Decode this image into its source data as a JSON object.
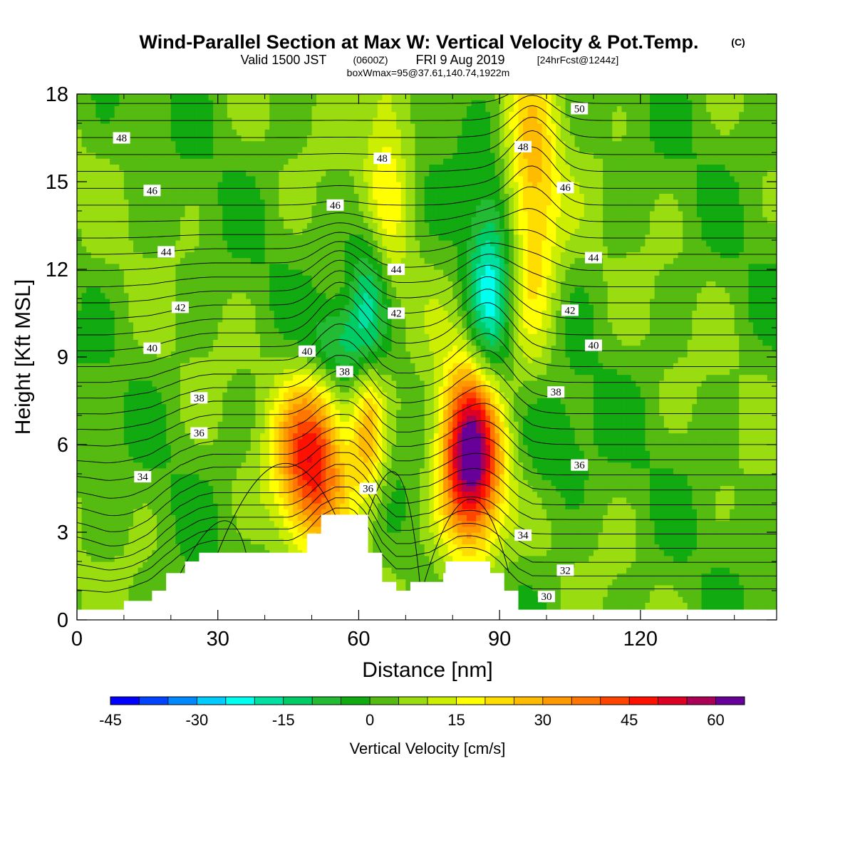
{
  "header": {
    "title": "Wind-Parallel Section at Max W: Vertical Velocity & Pot.Temp.",
    "copyright_mark": "(C)",
    "valid_prefix": "Valid 1500 JST",
    "zulu": "(0600Z)",
    "valid_date": "FRI 9 Aug 2019",
    "forecast": "[24hrFcst@1244z]",
    "box_info": "boxWmax=95@37.61,140.74,1922m"
  },
  "colorbar": {
    "label": "Vertical Velocity [cm/s]",
    "tick_labels": [
      "-45",
      "-30",
      "-15",
      "0",
      "15",
      "30",
      "45",
      "60"
    ],
    "tick_values": [
      -45,
      -30,
      -15,
      0,
      15,
      30,
      45,
      60
    ],
    "levels": [
      -45,
      -40,
      -35,
      -30,
      -25,
      -20,
      -15,
      -10,
      -5,
      0,
      5,
      10,
      15,
      20,
      25,
      30,
      35,
      40,
      45,
      50,
      55,
      60,
      65
    ],
    "colors": [
      "#0000ff",
      "#0044ff",
      "#0088ff",
      "#00ccff",
      "#00ffee",
      "#00e0a0",
      "#00cc66",
      "#22bb33",
      "#11aa11",
      "#55bb11",
      "#99dd11",
      "#ccee00",
      "#ffff00",
      "#ffdd00",
      "#ffbb00",
      "#ff9900",
      "#ff7700",
      "#ff4400",
      "#ff1100",
      "#dd0022",
      "#aa0055",
      "#660099"
    ]
  },
  "chart_data": {
    "type": "heatmap",
    "title": "Wind-Parallel Section at Max W: Vertical Velocity & Pot.Temp.",
    "xlabel": "Distance [nm]",
    "ylabel": "Height [Kft MSL]",
    "xlim": [
      0,
      149
    ],
    "ylim": [
      0,
      18
    ],
    "x_ticks": [
      0,
      30,
      60,
      90,
      120
    ],
    "x_tick_labels": [
      "0",
      "30",
      "60",
      "90",
      "120"
    ],
    "y_ticks": [
      0,
      3,
      6,
      9,
      12,
      15,
      18
    ],
    "y_tick_labels": [
      "0",
      "3",
      "6",
      "9",
      "12",
      "15",
      "18"
    ],
    "fill_variable": "Vertical Velocity [cm/s]",
    "vertical_velocity_features": [
      {
        "kind": "updraft",
        "x": 50,
        "y": 5.5,
        "peak": 45
      },
      {
        "kind": "updraft",
        "x": 62,
        "y": 6.5,
        "peak": 25
      },
      {
        "kind": "updraft",
        "x": 84,
        "y": 5.5,
        "peak": 65
      },
      {
        "kind": "updraft",
        "x": 66,
        "y": 16.5,
        "peak": 15
      },
      {
        "kind": "updraft",
        "x": 97,
        "y": 14,
        "peak": 25
      },
      {
        "kind": "downdraft",
        "x": 62,
        "y": 11,
        "peak": -20
      },
      {
        "kind": "downdraft",
        "x": 88,
        "y": 11,
        "peak": -25
      },
      {
        "kind": "downdraft",
        "x": 55,
        "y": 9.5,
        "peak": -15
      },
      {
        "kind": "downdraft",
        "x": 100,
        "y": 6,
        "peak": -10
      }
    ],
    "terrain": [
      {
        "x": 0,
        "h": 0.35
      },
      {
        "x": 10,
        "h": 0.35
      },
      {
        "x": 10,
        "h": 0.65
      },
      {
        "x": 16,
        "h": 0.65
      },
      {
        "x": 16,
        "h": 1.0
      },
      {
        "x": 19,
        "h": 1.0
      },
      {
        "x": 19,
        "h": 1.6
      },
      {
        "x": 23,
        "h": 1.6
      },
      {
        "x": 23,
        "h": 2.0
      },
      {
        "x": 26,
        "h": 2.0
      },
      {
        "x": 26,
        "h": 2.3
      },
      {
        "x": 49,
        "h": 2.3
      },
      {
        "x": 49,
        "h": 2.95
      },
      {
        "x": 52,
        "h": 2.95
      },
      {
        "x": 52,
        "h": 3.6
      },
      {
        "x": 62,
        "h": 3.6
      },
      {
        "x": 62,
        "h": 2.3
      },
      {
        "x": 65,
        "h": 2.3
      },
      {
        "x": 65,
        "h": 1.3
      },
      {
        "x": 68,
        "h": 1.3
      },
      {
        "x": 68,
        "h": 1.0
      },
      {
        "x": 71,
        "h": 1.0
      },
      {
        "x": 71,
        "h": 1.3
      },
      {
        "x": 78,
        "h": 1.3
      },
      {
        "x": 78,
        "h": 1.6
      },
      {
        "x": 78.5,
        "h": 1.6
      },
      {
        "x": 78.5,
        "h": 2.0
      },
      {
        "x": 88,
        "h": 2.0
      },
      {
        "x": 88,
        "h": 1.6
      },
      {
        "x": 91,
        "h": 1.6
      },
      {
        "x": 91,
        "h": 1.0
      },
      {
        "x": 94,
        "h": 1.0
      },
      {
        "x": 94,
        "h": 0.35
      },
      {
        "x": 149,
        "h": 0.35
      }
    ],
    "theta_contour_labels": [
      {
        "text": "48",
        "x": 9.5,
        "y": 16.5
      },
      {
        "text": "46",
        "x": 16,
        "y": 14.7
      },
      {
        "text": "44",
        "x": 19,
        "y": 12.6
      },
      {
        "text": "42",
        "x": 22,
        "y": 10.7
      },
      {
        "text": "40",
        "x": 16,
        "y": 9.3
      },
      {
        "text": "38",
        "x": 26,
        "y": 7.6
      },
      {
        "text": "36",
        "x": 26,
        "y": 6.4
      },
      {
        "text": "34",
        "x": 14,
        "y": 4.9
      },
      {
        "text": "48",
        "x": 65,
        "y": 15.8
      },
      {
        "text": "46",
        "x": 55,
        "y": 14.2
      },
      {
        "text": "44",
        "x": 68,
        "y": 12
      },
      {
        "text": "42",
        "x": 68,
        "y": 10.5
      },
      {
        "text": "40",
        "x": 49,
        "y": 9.2
      },
      {
        "text": "38",
        "x": 57,
        "y": 8.5
      },
      {
        "text": "36",
        "x": 62,
        "y": 4.5
      },
      {
        "text": "50",
        "x": 107,
        "y": 17.5
      },
      {
        "text": "48",
        "x": 95,
        "y": 16.2
      },
      {
        "text": "46",
        "x": 104,
        "y": 14.8
      },
      {
        "text": "44",
        "x": 110,
        "y": 12.4
      },
      {
        "text": "42",
        "x": 105,
        "y": 10.6
      },
      {
        "text": "40",
        "x": 110,
        "y": 9.4
      },
      {
        "text": "38",
        "x": 102,
        "y": 7.8
      },
      {
        "text": "36",
        "x": 107,
        "y": 5.3
      },
      {
        "text": "34",
        "x": 95,
        "y": 2.9
      },
      {
        "text": "32",
        "x": 104,
        "y": 1.7
      },
      {
        "text": "30",
        "x": 100,
        "y": 0.8
      }
    ]
  }
}
